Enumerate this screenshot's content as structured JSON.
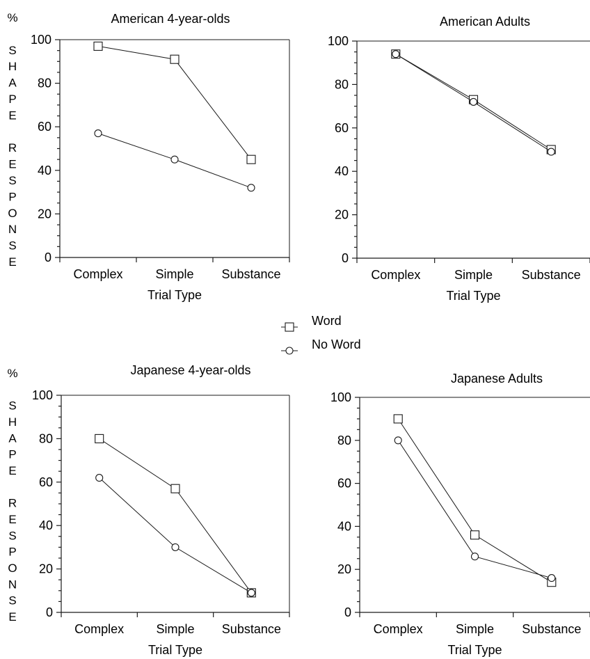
{
  "legend": [
    {
      "name": "Word",
      "marker": "square"
    },
    {
      "name": "No Word",
      "marker": "circle"
    }
  ],
  "chart_data": [
    {
      "type": "line",
      "title": "American 4-year-olds",
      "ylabel": "% SHAPE RESPONSE",
      "xlabel": "Trial Type",
      "categories": [
        "Complex",
        "Simple",
        "Substance"
      ],
      "ylim": [
        0,
        100
      ],
      "yticks": [
        "0",
        "20",
        "40",
        "60",
        "80",
        "100"
      ],
      "series": [
        {
          "name": "Word",
          "marker": "square",
          "values": [
            97,
            91,
            45
          ]
        },
        {
          "name": "No Word",
          "marker": "circle",
          "values": [
            57,
            45,
            32
          ]
        }
      ]
    },
    {
      "type": "line",
      "title": "American Adults",
      "ylabel": "",
      "xlabel": "Trial Type",
      "categories": [
        "Complex",
        "Simple",
        "Substance"
      ],
      "ylim": [
        0,
        100
      ],
      "yticks": [
        "0",
        "20",
        "40",
        "60",
        "80",
        "100"
      ],
      "series": [
        {
          "name": "Word",
          "marker": "square",
          "values": [
            94,
            73,
            50
          ]
        },
        {
          "name": "No Word",
          "marker": "circle",
          "values": [
            94,
            72,
            49
          ]
        }
      ]
    },
    {
      "type": "line",
      "title": "Japanese 4-year-olds",
      "ylabel": "% SHAPE RESPONSE",
      "xlabel": "Trial Type",
      "categories": [
        "Complex",
        "Simple",
        "Substance"
      ],
      "ylim": [
        0,
        100
      ],
      "yticks": [
        "0",
        "20",
        "40",
        "60",
        "80",
        "100"
      ],
      "series": [
        {
          "name": "Word",
          "marker": "square",
          "values": [
            80,
            57,
            9
          ]
        },
        {
          "name": "No Word",
          "marker": "circle",
          "values": [
            62,
            30,
            9
          ]
        }
      ]
    },
    {
      "type": "line",
      "title": "Japanese Adults",
      "ylabel": "",
      "xlabel": "Trial Type",
      "categories": [
        "Complex",
        "Simple",
        "Substance"
      ],
      "ylim": [
        0,
        100
      ],
      "yticks": [
        "0",
        "20",
        "40",
        "60",
        "80",
        "100"
      ],
      "series": [
        {
          "name": "Word",
          "marker": "square",
          "values": [
            90,
            36,
            14
          ]
        },
        {
          "name": "No Word",
          "marker": "circle",
          "values": [
            80,
            26,
            16
          ]
        }
      ]
    }
  ]
}
